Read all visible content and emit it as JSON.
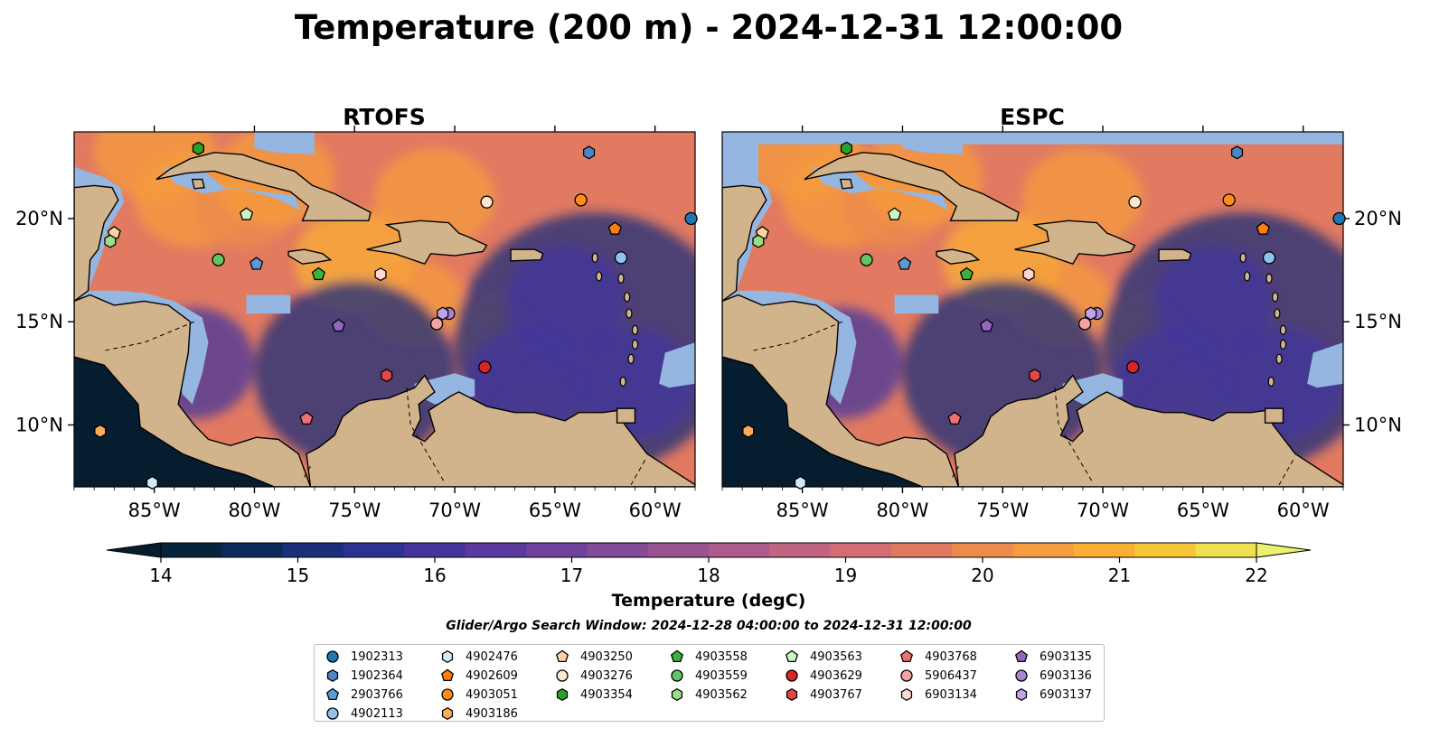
{
  "figure": {
    "title": "Temperature (200 m) - 2024-12-31 12:00:00",
    "search_window": "Glider/Argo Search Window: 2024-12-28 04:00:00 to 2024-12-31 12:00:00"
  },
  "panels": [
    {
      "id": "rtofs",
      "title": "RTOFS"
    },
    {
      "id": "espc",
      "title": "ESPC"
    }
  ],
  "map": {
    "lon_range": [
      -89,
      -58
    ],
    "lat_range": [
      7,
      24.2
    ],
    "x_ticks": [
      {
        "value": -85,
        "label": "85°W"
      },
      {
        "value": -80,
        "label": "80°W"
      },
      {
        "value": -75,
        "label": "75°W"
      },
      {
        "value": -70,
        "label": "70°W"
      },
      {
        "value": -65,
        "label": "65°W"
      },
      {
        "value": -60,
        "label": "60°W"
      }
    ],
    "y_ticks": [
      {
        "value": 20,
        "label": "20°N"
      },
      {
        "value": 15,
        "label": "15°N"
      },
      {
        "value": 10,
        "label": "10°N"
      }
    ]
  },
  "colorbar": {
    "label": "Temperature (degC)",
    "vmin": 14,
    "vmax": 22,
    "step": 0.5,
    "ticks": [
      {
        "value": 14,
        "label": "14"
      },
      {
        "value": 15,
        "label": "15"
      },
      {
        "value": 16,
        "label": "16"
      },
      {
        "value": 17,
        "label": "17"
      },
      {
        "value": 18,
        "label": "18"
      },
      {
        "value": 19,
        "label": "19"
      },
      {
        "value": 20,
        "label": "20"
      },
      {
        "value": 21,
        "label": "21"
      },
      {
        "value": 22,
        "label": "22"
      }
    ],
    "colors": [
      "#05233a",
      "#0b2a5a",
      "#1a2e7a",
      "#2d3191",
      "#43359c",
      "#5a3a9e",
      "#6e429c",
      "#834b98",
      "#985392",
      "#ad5b8a",
      "#c16482",
      "#d36d74",
      "#e27a62",
      "#ee8a4e",
      "#f59c3c",
      "#f9af34",
      "#f6c838",
      "#efe14d"
    ],
    "under_color": "#051d2e",
    "over_color": "#e8f26a"
  },
  "colors": {
    "land": "#d2b48c",
    "shelf": "#94b6e0",
    "ocean_mid": "#e27a62"
  },
  "platforms": [
    {
      "id": "1902313",
      "marker": "circle",
      "color": "#1f77b4",
      "lon": -58.2,
      "lat": 20.0
    },
    {
      "id": "1902364",
      "marker": "hexagon",
      "color": "#4c86c6",
      "lon": -63.3,
      "lat": 23.2
    },
    {
      "id": "2903766",
      "marker": "pentagon",
      "color": "#5b9bd5",
      "lon": -79.9,
      "lat": 17.8
    },
    {
      "id": "4902113",
      "marker": "circle",
      "color": "#8fc2ec",
      "lon": -61.7,
      "lat": 18.1
    },
    {
      "id": "4902476",
      "marker": "hexagon",
      "color": "#cfeaf8",
      "lon": -85.1,
      "lat": 7.2
    },
    {
      "id": "4902609",
      "marker": "pentagon",
      "color": "#ff7f0e",
      "lon": -62.0,
      "lat": 19.5
    },
    {
      "id": "4903051",
      "marker": "circle",
      "color": "#ff8c1a",
      "lon": -63.7,
      "lat": 20.9
    },
    {
      "id": "4903186",
      "marker": "hexagon",
      "color": "#ffa95a",
      "lon": -87.7,
      "lat": 9.7
    },
    {
      "id": "4903250",
      "marker": "pentagon",
      "color": "#ffd2a1",
      "lon": -87.0,
      "lat": 19.3
    },
    {
      "id": "4903276",
      "marker": "circle",
      "color": "#ffe7cf",
      "lon": -68.4,
      "lat": 20.8
    },
    {
      "id": "4903354",
      "marker": "hexagon",
      "color": "#2ca02c",
      "lon": -82.8,
      "lat": 23.4
    },
    {
      "id": "4903558",
      "marker": "pentagon",
      "color": "#3bb23b",
      "lon": -76.8,
      "lat": 17.3
    },
    {
      "id": "4903559",
      "marker": "circle",
      "color": "#66c266",
      "lon": -81.8,
      "lat": 18.0
    },
    {
      "id": "4903562",
      "marker": "hexagon",
      "color": "#98df8a",
      "lon": -87.2,
      "lat": 18.9
    },
    {
      "id": "4903563",
      "marker": "pentagon",
      "color": "#ccf5c4",
      "lon": -80.4,
      "lat": 20.2
    },
    {
      "id": "4903629",
      "marker": "circle",
      "color": "#d62728",
      "lon": -68.5,
      "lat": 12.8
    },
    {
      "id": "4903767",
      "marker": "hexagon",
      "color": "#e04848",
      "lon": -73.4,
      "lat": 12.4
    },
    {
      "id": "4903768",
      "marker": "pentagon",
      "color": "#ef7070",
      "lon": -77.4,
      "lat": 10.3
    },
    {
      "id": "5906437",
      "marker": "circle",
      "color": "#f4a3a3",
      "lon": -70.9,
      "lat": 14.9
    },
    {
      "id": "6903134",
      "marker": "hexagon",
      "color": "#ffd6d6",
      "lon": -73.7,
      "lat": 17.3
    },
    {
      "id": "6903135",
      "marker": "pentagon",
      "color": "#9467bd",
      "lon": -75.8,
      "lat": 14.8
    },
    {
      "id": "6903136",
      "marker": "circle",
      "color": "#a983d4",
      "lon": -70.3,
      "lat": 15.4
    },
    {
      "id": "6903137",
      "marker": "hexagon",
      "color": "#c1a3e6",
      "lon": -70.6,
      "lat": 15.4
    }
  ]
}
